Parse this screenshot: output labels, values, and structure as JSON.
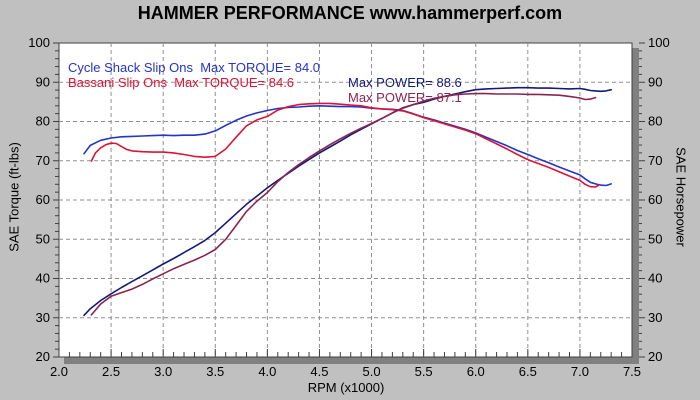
{
  "title": "HAMMER PERFORMANCE www.hammerperf.com",
  "colors": {
    "page_bg": "#c0c0c0",
    "plot_bg": "#ffffff",
    "plot_border": "#404040",
    "plot_shadow": "#808080",
    "grid": "#8f8f8f",
    "tick": "#404040",
    "text": "#000000",
    "torque_blue": "#2433cc",
    "torque_red": "#dc1433",
    "power_navy": "#141a78",
    "power_maroon": "#8c2450"
  },
  "legend": [
    {
      "series": "Cycle Shack Slip Ons",
      "torque_label": "Cycle Shack Slip Ons  Max TORQUE= 84.0",
      "power_label": "Max POWER= 88.6",
      "max_torque": 84.0,
      "max_power": 88.6,
      "torque_color": "#2433cc",
      "power_color": "#141a78"
    },
    {
      "series": "Bassani Slip Ons",
      "torque_label": "Bassani Slip Ons  Max TORQUE= 84.6",
      "power_label": "Max POWER= 87.1",
      "max_torque": 84.6,
      "max_power": 87.1,
      "torque_color": "#dc1433",
      "power_color": "#8c2450"
    }
  ],
  "chart_data": {
    "type": "line",
    "title": "HAMMER PERFORMANCE www.hammerperf.com",
    "xlabel": "RPM (x1000)",
    "ylabel_left": "SAE Torque (ft-lbs)",
    "ylabel_right": "SAE Horsepower",
    "xlim": [
      2.0,
      7.5
    ],
    "ylim": [
      20,
      100
    ],
    "x_ticks": [
      2.0,
      2.5,
      3.0,
      3.5,
      4.0,
      4.5,
      5.0,
      5.5,
      6.0,
      6.5,
      7.0,
      7.5
    ],
    "y_ticks": [
      20,
      30,
      40,
      50,
      60,
      70,
      80,
      90,
      100
    ],
    "x_minor_step": 0.1,
    "y_minor_step": 2,
    "grid": "dashed",
    "legend_position": "top-left-inside",
    "series": [
      {
        "name": "cycle-shack-torque",
        "label": "Cycle Shack Slip Ons torque",
        "axis": "left",
        "color": "#2433cc",
        "points": [
          [
            2.24,
            71.8
          ],
          [
            2.3,
            73.9
          ],
          [
            2.4,
            75.2
          ],
          [
            2.5,
            75.8
          ],
          [
            2.6,
            76.1
          ],
          [
            2.7,
            76.2
          ],
          [
            2.8,
            76.3
          ],
          [
            2.9,
            76.4
          ],
          [
            3.0,
            76.5
          ],
          [
            3.1,
            76.4
          ],
          [
            3.2,
            76.5
          ],
          [
            3.3,
            76.5
          ],
          [
            3.4,
            76.8
          ],
          [
            3.5,
            77.6
          ],
          [
            3.6,
            79.0
          ],
          [
            3.7,
            80.3
          ],
          [
            3.8,
            81.4
          ],
          [
            3.9,
            82.2
          ],
          [
            4.0,
            82.8
          ],
          [
            4.1,
            83.3
          ],
          [
            4.2,
            83.6
          ],
          [
            4.3,
            83.7
          ],
          [
            4.4,
            83.9
          ],
          [
            4.5,
            84.0
          ],
          [
            4.6,
            83.9
          ],
          [
            4.7,
            83.8
          ],
          [
            4.8,
            83.8
          ],
          [
            4.9,
            83.7
          ],
          [
            5.0,
            83.4
          ],
          [
            5.1,
            83.2
          ],
          [
            5.2,
            83.1
          ],
          [
            5.3,
            82.8
          ],
          [
            5.4,
            82.0
          ],
          [
            5.5,
            81.1
          ],
          [
            5.6,
            80.4
          ],
          [
            5.7,
            79.6
          ],
          [
            5.8,
            78.8
          ],
          [
            5.9,
            78.0
          ],
          [
            6.0,
            77.1
          ],
          [
            6.1,
            76.0
          ],
          [
            6.2,
            74.9
          ],
          [
            6.3,
            73.8
          ],
          [
            6.4,
            72.6
          ],
          [
            6.5,
            71.6
          ],
          [
            6.6,
            70.5
          ],
          [
            6.7,
            69.5
          ],
          [
            6.8,
            68.4
          ],
          [
            6.9,
            67.4
          ],
          [
            7.0,
            66.4
          ],
          [
            7.05,
            65.4
          ],
          [
            7.1,
            64.5
          ],
          [
            7.15,
            64.1
          ],
          [
            7.2,
            63.8
          ],
          [
            7.25,
            63.7
          ],
          [
            7.3,
            64.1
          ]
        ]
      },
      {
        "name": "bassani-torque",
        "label": "Bassani Slip Ons torque",
        "axis": "left",
        "color": "#dc1433",
        "points": [
          [
            2.31,
            69.9
          ],
          [
            2.35,
            72.0
          ],
          [
            2.4,
            73.3
          ],
          [
            2.45,
            74.1
          ],
          [
            2.5,
            74.5
          ],
          [
            2.55,
            74.4
          ],
          [
            2.6,
            73.6
          ],
          [
            2.65,
            72.9
          ],
          [
            2.7,
            72.5
          ],
          [
            2.8,
            72.3
          ],
          [
            2.9,
            72.2
          ],
          [
            3.0,
            72.2
          ],
          [
            3.1,
            72.0
          ],
          [
            3.2,
            71.6
          ],
          [
            3.3,
            71.1
          ],
          [
            3.4,
            70.9
          ],
          [
            3.5,
            71.1
          ],
          [
            3.6,
            73.0
          ],
          [
            3.7,
            76.0
          ],
          [
            3.8,
            78.9
          ],
          [
            3.9,
            80.4
          ],
          [
            4.0,
            81.3
          ],
          [
            4.1,
            82.9
          ],
          [
            4.2,
            83.8
          ],
          [
            4.3,
            84.3
          ],
          [
            4.4,
            84.5
          ],
          [
            4.5,
            84.6
          ],
          [
            4.6,
            84.6
          ],
          [
            4.7,
            84.4
          ],
          [
            4.8,
            84.2
          ],
          [
            4.9,
            84.0
          ],
          [
            5.0,
            83.5
          ],
          [
            5.1,
            83.2
          ],
          [
            5.2,
            83.0
          ],
          [
            5.3,
            82.7
          ],
          [
            5.4,
            81.9
          ],
          [
            5.5,
            81.0
          ],
          [
            5.6,
            80.2
          ],
          [
            5.7,
            79.4
          ],
          [
            5.8,
            78.6
          ],
          [
            5.9,
            77.8
          ],
          [
            6.0,
            76.9
          ],
          [
            6.1,
            75.6
          ],
          [
            6.2,
            74.3
          ],
          [
            6.3,
            73.0
          ],
          [
            6.4,
            71.6
          ],
          [
            6.5,
            70.3
          ],
          [
            6.6,
            69.3
          ],
          [
            6.7,
            68.3
          ],
          [
            6.8,
            67.2
          ],
          [
            6.9,
            66.1
          ],
          [
            7.0,
            65.0
          ],
          [
            7.05,
            64.0
          ],
          [
            7.1,
            63.4
          ],
          [
            7.15,
            63.3
          ],
          [
            7.18,
            63.8
          ]
        ]
      },
      {
        "name": "cycle-shack-power",
        "label": "Cycle Shack Slip Ons power",
        "axis": "right",
        "color": "#141a78",
        "points": [
          [
            2.24,
            30.6
          ],
          [
            2.3,
            32.3
          ],
          [
            2.4,
            34.4
          ],
          [
            2.5,
            36.1
          ],
          [
            2.6,
            37.7
          ],
          [
            2.7,
            39.2
          ],
          [
            2.8,
            40.7
          ],
          [
            2.9,
            42.2
          ],
          [
            3.0,
            43.7
          ],
          [
            3.1,
            45.1
          ],
          [
            3.2,
            46.6
          ],
          [
            3.3,
            48.1
          ],
          [
            3.4,
            49.7
          ],
          [
            3.5,
            51.7
          ],
          [
            3.6,
            54.1
          ],
          [
            3.7,
            56.5
          ],
          [
            3.8,
            58.9
          ],
          [
            3.9,
            61.0
          ],
          [
            4.0,
            63.1
          ],
          [
            4.1,
            65.0
          ],
          [
            4.2,
            66.8
          ],
          [
            4.3,
            68.6
          ],
          [
            4.4,
            70.3
          ],
          [
            4.5,
            72.0
          ],
          [
            4.6,
            73.5
          ],
          [
            4.7,
            75.0
          ],
          [
            4.8,
            76.6
          ],
          [
            4.9,
            78.0
          ],
          [
            5.0,
            79.4
          ],
          [
            5.1,
            80.8
          ],
          [
            5.2,
            82.2
          ],
          [
            5.3,
            83.5
          ],
          [
            5.4,
            84.3
          ],
          [
            5.5,
            84.9
          ],
          [
            5.6,
            85.7
          ],
          [
            5.7,
            86.4
          ],
          [
            5.8,
            87.0
          ],
          [
            5.9,
            87.6
          ],
          [
            6.0,
            88.1
          ],
          [
            6.1,
            88.3
          ],
          [
            6.2,
            88.4
          ],
          [
            6.3,
            88.5
          ],
          [
            6.4,
            88.6
          ],
          [
            6.5,
            88.6
          ],
          [
            6.6,
            88.5
          ],
          [
            6.7,
            88.5
          ],
          [
            6.8,
            88.4
          ],
          [
            6.9,
            88.3
          ],
          [
            7.0,
            88.4
          ],
          [
            7.05,
            88.2
          ],
          [
            7.1,
            87.9
          ],
          [
            7.15,
            87.8
          ],
          [
            7.2,
            87.7
          ],
          [
            7.25,
            87.8
          ],
          [
            7.3,
            88.1
          ]
        ]
      },
      {
        "name": "bassani-power",
        "label": "Bassani Slip Ons power",
        "axis": "right",
        "color": "#8c2450",
        "points": [
          [
            2.31,
            30.7
          ],
          [
            2.4,
            33.5
          ],
          [
            2.5,
            35.5
          ],
          [
            2.6,
            36.4
          ],
          [
            2.7,
            37.3
          ],
          [
            2.8,
            38.5
          ],
          [
            2.9,
            39.9
          ],
          [
            3.0,
            41.2
          ],
          [
            3.1,
            42.5
          ],
          [
            3.2,
            43.6
          ],
          [
            3.3,
            44.7
          ],
          [
            3.4,
            45.9
          ],
          [
            3.5,
            47.4
          ],
          [
            3.6,
            50.0
          ],
          [
            3.7,
            53.5
          ],
          [
            3.8,
            57.1
          ],
          [
            3.9,
            59.7
          ],
          [
            4.0,
            61.9
          ],
          [
            4.1,
            64.7
          ],
          [
            4.2,
            67.0
          ],
          [
            4.3,
            69.0
          ],
          [
            4.4,
            70.8
          ],
          [
            4.5,
            72.5
          ],
          [
            4.6,
            74.1
          ],
          [
            4.7,
            75.6
          ],
          [
            4.8,
            77.0
          ],
          [
            4.9,
            78.3
          ],
          [
            5.0,
            79.5
          ],
          [
            5.1,
            80.8
          ],
          [
            5.2,
            82.2
          ],
          [
            5.3,
            83.4
          ],
          [
            5.4,
            84.3
          ],
          [
            5.5,
            85.2
          ],
          [
            5.6,
            85.9
          ],
          [
            5.7,
            86.4
          ],
          [
            5.8,
            86.8
          ],
          [
            5.9,
            87.0
          ],
          [
            6.0,
            87.1
          ],
          [
            6.1,
            87.1
          ],
          [
            6.2,
            87.0
          ],
          [
            6.3,
            87.0
          ],
          [
            6.4,
            87.0
          ],
          [
            6.5,
            86.9
          ],
          [
            6.6,
            86.9
          ],
          [
            6.7,
            86.8
          ],
          [
            6.8,
            86.7
          ],
          [
            6.9,
            86.4
          ],
          [
            7.0,
            86.0
          ],
          [
            7.05,
            85.6
          ],
          [
            7.1,
            85.7
          ],
          [
            7.15,
            86.1
          ]
        ]
      }
    ]
  }
}
